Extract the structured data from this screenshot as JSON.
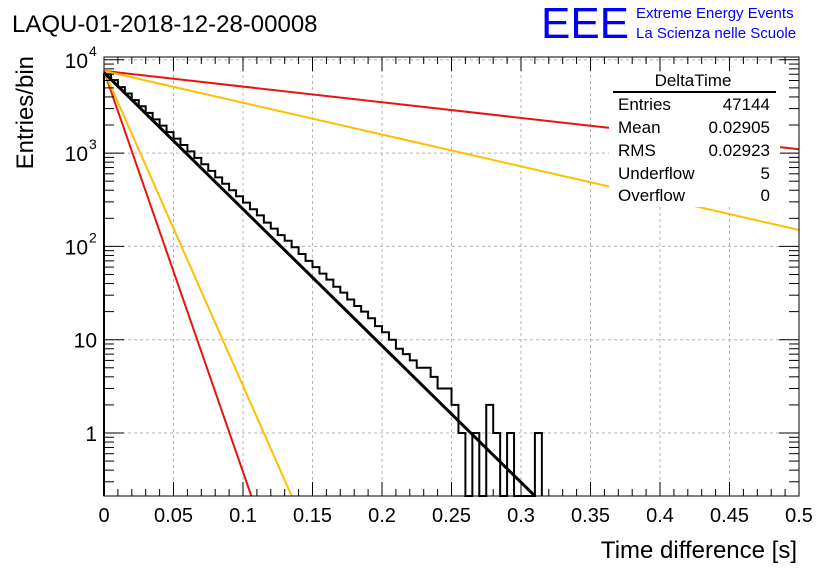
{
  "header": {
    "run_title": "LAQU-01-2018-12-28-00008",
    "logo_text": "EEE",
    "logo_line1": "Extreme Energy Events",
    "logo_line2": "La Scienza nelle Scuole"
  },
  "stats_box": {
    "title": "DeltaTime",
    "rows": [
      {
        "label": "Entries",
        "value": "47144"
      },
      {
        "label": "Mean",
        "value": "0.02905"
      },
      {
        "label": "RMS",
        "value": "0.02923"
      },
      {
        "label": "Underflow",
        "value": "5"
      },
      {
        "label": "Overflow",
        "value": "0"
      }
    ]
  },
  "colors": {
    "histogram": "#000000",
    "fit": "#000000",
    "red_lines": "#e8150f",
    "orange_lines": "#ffbf00",
    "logo_blue": "#0000ff"
  },
  "chart_data": {
    "type": "step-histogram",
    "title": "LAQU-01-2018-12-28-00008",
    "xlabel": "Time difference [s]",
    "ylabel": "Entries/bin",
    "xlim": [
      0,
      0.5
    ],
    "ylim": [
      0.2,
      12000
    ],
    "yscale": "log",
    "grid": true,
    "x_ticks": [
      {
        "v": 0,
        "label": "0"
      },
      {
        "v": 0.05,
        "label": "0.05"
      },
      {
        "v": 0.1,
        "label": "0.1"
      },
      {
        "v": 0.15,
        "label": "0.15"
      },
      {
        "v": 0.2,
        "label": "0.2"
      },
      {
        "v": 0.25,
        "label": "0.25"
      },
      {
        "v": 0.3,
        "label": "0.3"
      },
      {
        "v": 0.35,
        "label": "0.35"
      },
      {
        "v": 0.4,
        "label": "0.4"
      },
      {
        "v": 0.45,
        "label": "0.45"
      },
      {
        "v": 0.5,
        "label": "0.5"
      }
    ],
    "y_ticks": [
      {
        "v": 10000,
        "base": "10",
        "exp": "4"
      },
      {
        "v": 1000,
        "base": "10",
        "exp": "3"
      },
      {
        "v": 100,
        "base": "10",
        "exp": "2"
      },
      {
        "v": 10,
        "base": "10",
        "exp": ""
      },
      {
        "v": 1,
        "base": "1",
        "exp": ""
      }
    ],
    "bin_width": 0.005,
    "bin_counts": [
      7000,
      6050,
      5100,
      4350,
      3700,
      3180,
      2700,
      2300,
      1970,
      1680,
      1430,
      1220,
      1045,
      890,
      760,
      645,
      550,
      470,
      400,
      345,
      295,
      250,
      215,
      180,
      155,
      132,
      115,
      98,
      83,
      70,
      60,
      51,
      44,
      37,
      32,
      27,
      23,
      20,
      17,
      14,
      12,
      10,
      8,
      7,
      6,
      5,
      5,
      4,
      3,
      3,
      2,
      1,
      0,
      1,
      0,
      2,
      1,
      0,
      1,
      0,
      0,
      0,
      1
    ],
    "fit_line": {
      "x": [
        0,
        0.31
      ],
      "y": [
        7300,
        0.2
      ]
    },
    "red_lines": [
      {
        "x": [
          0,
          0.5
        ],
        "y": [
          7600,
          1100
        ]
      },
      {
        "x": [
          0,
          0.106
        ],
        "y": [
          7600,
          0.2
        ]
      }
    ],
    "orange_lines": [
      {
        "x": [
          0,
          0.5
        ],
        "y": [
          7600,
          150
        ]
      },
      {
        "x": [
          0,
          0.135
        ],
        "y": [
          7600,
          0.2
        ]
      }
    ]
  }
}
